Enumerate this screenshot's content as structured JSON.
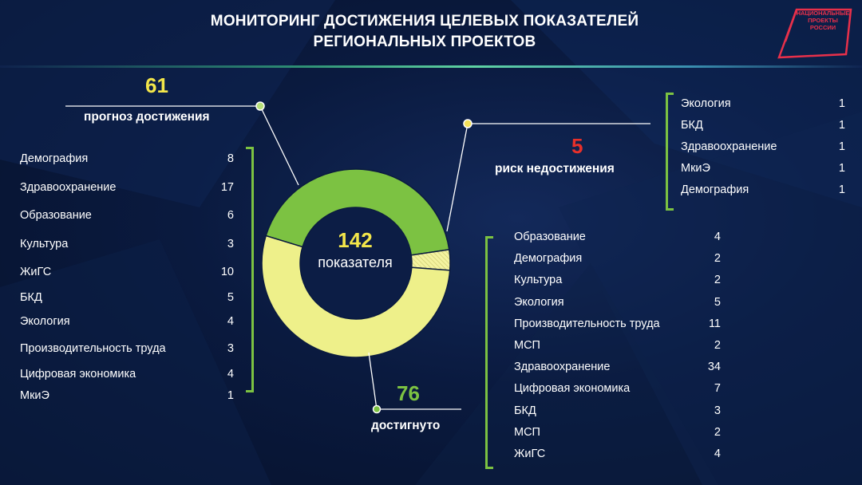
{
  "title": {
    "line1": "МОНИТОРИНГ ДОСТИЖЕНИЯ ЦЕЛЕВЫХ ПОКАЗАТЕЛЕЙ",
    "line2": "РЕГИОНАЛЬНЫХ ПРОЕКТОВ"
  },
  "logo": {
    "line1": "НАЦИОНАЛЬНЫЕ",
    "line2": "ПРОЕКТЫ",
    "line3": "РОССИИ"
  },
  "colors": {
    "forecast": "#7cc242",
    "achieved": "#eef08a",
    "risk": "#e8f0b0",
    "forecast_number": "#f3e64a",
    "risk_number": "#e8302a",
    "achieved_number": "#7cc242",
    "bracket": "#7cc242"
  },
  "center": {
    "total": "142",
    "label": "показателя"
  },
  "forecast": {
    "count": "61",
    "label": "прогноз достижения",
    "items": [
      {
        "name": "Демография",
        "value": "8"
      },
      {
        "name": "Здравоохранение",
        "value": "17"
      },
      {
        "name": "Образование",
        "value": "6"
      },
      {
        "name": "Культура",
        "value": "3"
      },
      {
        "name": "ЖиГС",
        "value": "10"
      },
      {
        "name": "БКД",
        "value": "5"
      },
      {
        "name": "Экология",
        "value": "4"
      },
      {
        "name": "Производительность труда",
        "value": "3"
      },
      {
        "name": "Цифровая экономика",
        "value": "4"
      },
      {
        "name": "МкиЭ",
        "value": "1"
      }
    ]
  },
  "risk": {
    "count": "5",
    "label": "риск недостижения",
    "items": [
      {
        "name": "Экология",
        "value": "1"
      },
      {
        "name": "БКД",
        "value": "1"
      },
      {
        "name": "Здравоохранение",
        "value": "1"
      },
      {
        "name": "МкиЭ",
        "value": "1"
      },
      {
        "name": "Демография",
        "value": "1"
      }
    ]
  },
  "achieved": {
    "count": "76",
    "label": "достигнуто",
    "items": [
      {
        "name": "Образование",
        "value": "4"
      },
      {
        "name": "Демография",
        "value": "2"
      },
      {
        "name": "Культура",
        "value": "2"
      },
      {
        "name": "Экология",
        "value": "5"
      },
      {
        "name": "Производительность труда",
        "value": "11"
      },
      {
        "name": "МСП",
        "value": "2"
      },
      {
        "name": "Здравоохранение",
        "value": "34"
      },
      {
        "name": "Цифровая экономика",
        "value": "7"
      },
      {
        "name": "БКД",
        "value": "3"
      },
      {
        "name": "МСП",
        "value": "2"
      },
      {
        "name": "ЖиГС",
        "value": "4"
      }
    ]
  },
  "chart_data": {
    "type": "pie",
    "donut": true,
    "total": 142,
    "categories": [
      "прогноз достижения",
      "риск недостижения",
      "достигнуто"
    ],
    "values": [
      61,
      5,
      76
    ]
  }
}
